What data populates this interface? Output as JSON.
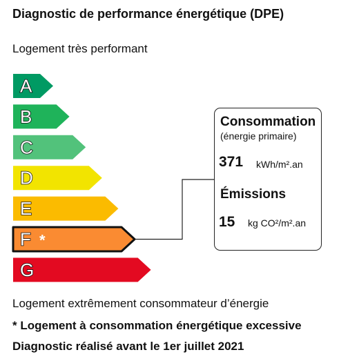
{
  "title": "Diagnostic de performance énergétique (DPE)",
  "top_label": "Logement très performant",
  "bottom_label": "Logement extrêmement consommateur d’énergie",
  "footnote": "* Logement à consommation énergétique excessive",
  "diagnostic_note": "Diagnostic réalisé avant le 1er juillet 2021",
  "scale": {
    "classes": [
      {
        "letter": "A",
        "color": "#009a63"
      },
      {
        "letter": "B",
        "color": "#1fb35a"
      },
      {
        "letter": "C",
        "color": "#52c27b"
      },
      {
        "letter": "D",
        "color": "#f2e400"
      },
      {
        "letter": "E",
        "color": "#fbbb00"
      },
      {
        "letter": "F",
        "color": "#fa8b32"
      },
      {
        "letter": "G",
        "color": "#e30a21"
      }
    ],
    "current": "F",
    "current_marker": "*"
  },
  "box": {
    "consumption_label": "Consommation",
    "consumption_sub": "(énergie primaire)",
    "consumption_value": "371",
    "consumption_unit": "kWh/m².an",
    "emissions_label": "Émissions",
    "emissions_value": "15",
    "emissions_unit": "kg CO²/m².an"
  }
}
